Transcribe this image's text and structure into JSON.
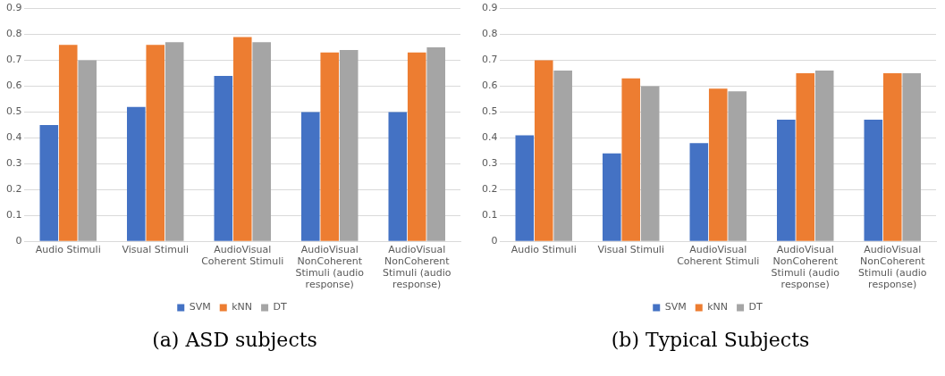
{
  "chart_data": [
    {
      "type": "bar",
      "title": "(a) ASD subjects",
      "categories": [
        "Audio Stimuli",
        "Visual Stimuli",
        "AudioVisual Coherent Stimuli",
        "AudioVisual NonCoherent Stimuli (audio response)",
        "AudioVisual NonCoherent Stimuli (audio response)"
      ],
      "series": [
        {
          "name": "SVM",
          "color": "#4472c4",
          "values": [
            0.45,
            0.52,
            0.64,
            0.5,
            0.5
          ]
        },
        {
          "name": "kNN",
          "color": "#ed7d31",
          "values": [
            0.76,
            0.76,
            0.79,
            0.73,
            0.73
          ]
        },
        {
          "name": "DT",
          "color": "#a5a5a5",
          "values": [
            0.7,
            0.77,
            0.77,
            0.74,
            0.75
          ]
        }
      ],
      "ylim": [
        0,
        0.9
      ],
      "yticks": [
        0,
        0.1,
        0.2,
        0.3,
        0.4,
        0.5,
        0.6,
        0.7,
        0.8,
        0.9
      ],
      "grid": "y",
      "legend": "bottom"
    },
    {
      "type": "bar",
      "title": "(b) Typical Subjects",
      "categories": [
        "Audio Stimuli",
        "Visual Stimuli",
        "AudioVisual Coherent Stimuli",
        "AudioVisual NonCoherent Stimuli (audio response)",
        "AudioVisual NonCoherent Stimuli (audio response)"
      ],
      "series": [
        {
          "name": "SVM",
          "color": "#4472c4",
          "values": [
            0.41,
            0.34,
            0.38,
            0.47,
            0.47
          ]
        },
        {
          "name": "kNN",
          "color": "#ed7d31",
          "values": [
            0.7,
            0.63,
            0.59,
            0.65,
            0.65
          ]
        },
        {
          "name": "DT",
          "color": "#a5a5a5",
          "values": [
            0.66,
            0.6,
            0.58,
            0.66,
            0.65
          ]
        }
      ],
      "ylim": [
        0,
        0.9
      ],
      "yticks": [
        0,
        0.1,
        0.2,
        0.3,
        0.4,
        0.5,
        0.6,
        0.7,
        0.8,
        0.9
      ],
      "grid": "y",
      "legend": "bottom"
    }
  ]
}
